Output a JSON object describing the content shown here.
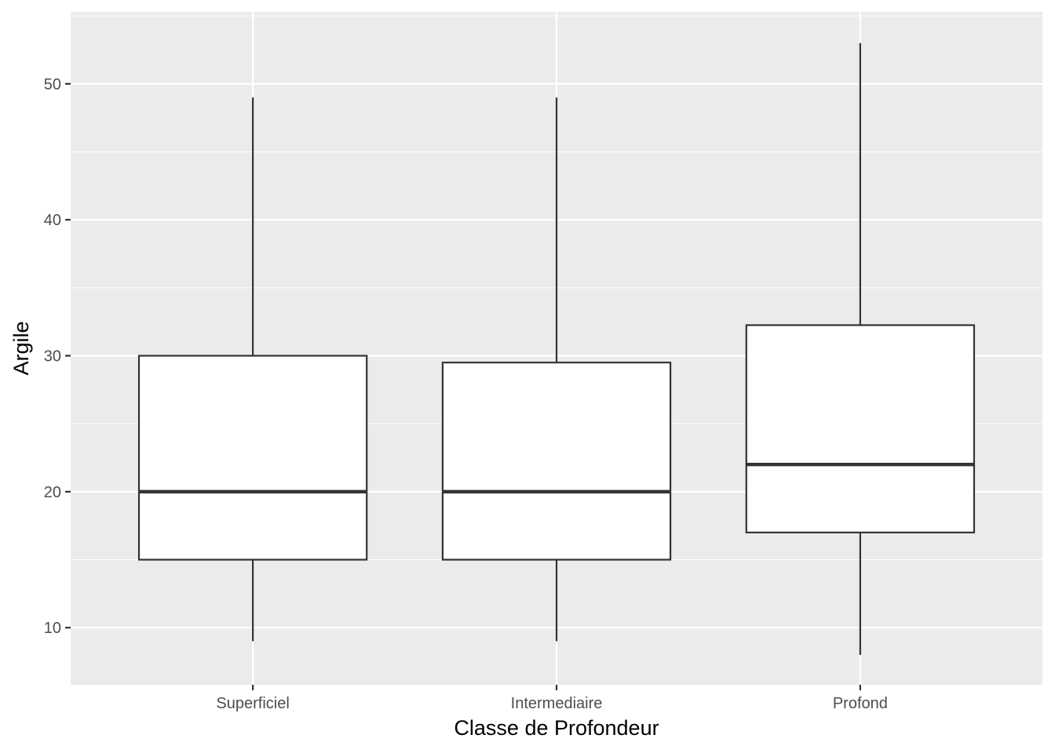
{
  "chart_data": {
    "type": "box",
    "xlabel": "Classe de Profondeur",
    "ylabel": "Argile",
    "ylim": [
      5.8,
      55.3
    ],
    "y_ticks": [
      10,
      20,
      30,
      40,
      50
    ],
    "y_tick_labels": [
      "10",
      "20",
      "30",
      "40",
      "50"
    ],
    "categories": [
      "Superficiel",
      "Intermediaire",
      "Profond"
    ],
    "boxes": [
      {
        "category": "Superficiel",
        "whisker_low": 9,
        "q1": 15,
        "median": 20,
        "q3": 30,
        "whisker_high": 49
      },
      {
        "category": "Intermediaire",
        "whisker_low": 9,
        "q1": 15,
        "median": 20,
        "q3": 29.5,
        "whisker_high": 49
      },
      {
        "category": "Profond",
        "whisker_low": 8,
        "q1": 17,
        "median": 22,
        "q3": 32.25,
        "whisker_high": 53
      }
    ],
    "grid": true,
    "legend": "none",
    "colors": {
      "panel": "#ebebeb",
      "grid": "#ffffff",
      "box_fill": "#ffffff",
      "box_stroke": "#333333",
      "tick_text": "#4d4d4d"
    }
  }
}
